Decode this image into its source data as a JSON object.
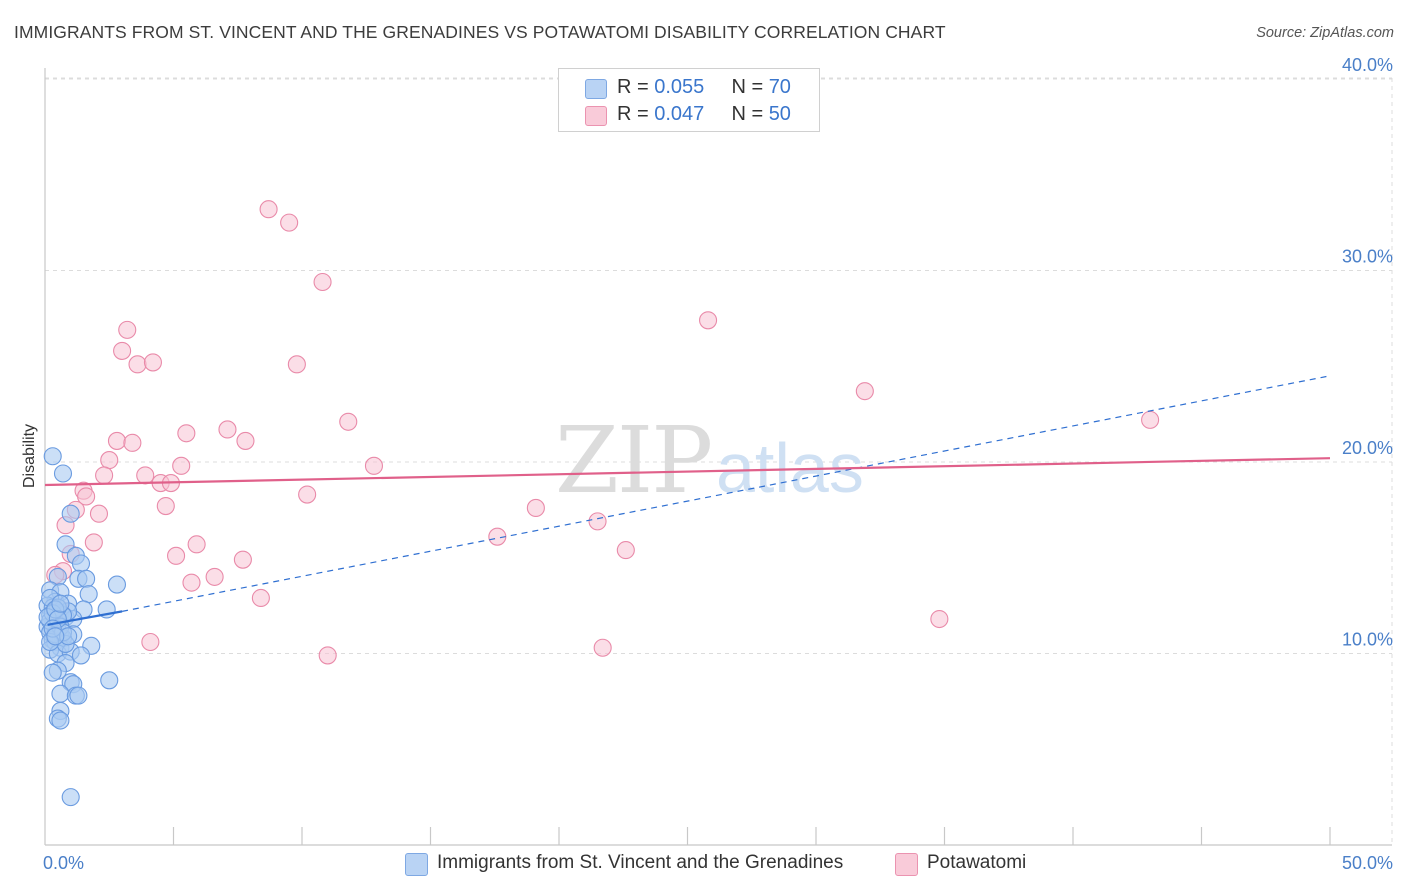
{
  "title": "IMMIGRANTS FROM ST. VINCENT AND THE GRENADINES VS POTAWATOMI DISABILITY CORRELATION CHART",
  "source": "Source: ZipAtlas.com",
  "watermark": {
    "zip": "ZIP",
    "atlas": "atlas"
  },
  "colors": {
    "blue_fill": "#a9c9f2",
    "blue_stroke": "#6a9be0",
    "blue_line": "#2f6fd1",
    "pink_fill": "#f7c3d3",
    "pink_stroke": "#e98aa9",
    "pink_line": "#e0608a",
    "tick_text": "#4a7fc8",
    "grid": "#dcdcdc"
  },
  "legend_top": {
    "blue": {
      "r_label": "R = ",
      "r_value": "0.055",
      "n_label": "N = ",
      "n_value": "70"
    },
    "pink": {
      "r_label": "R = ",
      "r_value": "0.047",
      "n_label": "N = ",
      "n_value": "50"
    }
  },
  "legend_bottom": {
    "blue": "Immigrants from St. Vincent and the Grenadines",
    "pink": "Potawatomi"
  },
  "chart_data": {
    "type": "scatter",
    "title": "IMMIGRANTS FROM ST. VINCENT AND THE GRENADINES VS POTAWATOMI DISABILITY CORRELATION CHART",
    "xlabel": "",
    "ylabel": "Disability",
    "xlim": [
      0,
      50
    ],
    "ylim": [
      0,
      41.5
    ],
    "x_tick_labels": [
      {
        "value": 0,
        "label": "0.0%"
      },
      {
        "value": 50,
        "label": "50.0%"
      }
    ],
    "y_tick_labels": [
      {
        "value": 10,
        "label": "10.0%"
      },
      {
        "value": 20,
        "label": "20.0%"
      },
      {
        "value": 30,
        "label": "30.0%"
      },
      {
        "value": 40,
        "label": "40.0%"
      }
    ],
    "series": [
      {
        "name": "Immigrants from St. Vincent and the Grenadines",
        "color": "blue",
        "R": 0.055,
        "N": 70,
        "trend_solid": {
          "x": [
            0.1,
            3.0
          ],
          "y": [
            11.5,
            12.2
          ]
        },
        "trend_dashed": {
          "x": [
            3.0,
            50.0
          ],
          "y": [
            12.2,
            24.5
          ]
        },
        "points": [
          [
            0.3,
            20.3
          ],
          [
            0.7,
            19.4
          ],
          [
            1.0,
            17.3
          ],
          [
            0.8,
            15.7
          ],
          [
            1.2,
            15.1
          ],
          [
            1.4,
            14.7
          ],
          [
            0.5,
            14.0
          ],
          [
            1.3,
            13.9
          ],
          [
            1.6,
            13.9
          ],
          [
            2.8,
            13.6
          ],
          [
            0.2,
            13.3
          ],
          [
            0.6,
            13.2
          ],
          [
            1.7,
            13.1
          ],
          [
            0.4,
            12.7
          ],
          [
            0.9,
            12.6
          ],
          [
            0.1,
            12.5
          ],
          [
            0.3,
            12.4
          ],
          [
            1.5,
            12.3
          ],
          [
            2.4,
            12.3
          ],
          [
            0.6,
            12.1
          ],
          [
            0.2,
            12.0
          ],
          [
            0.8,
            11.9
          ],
          [
            1.1,
            11.8
          ],
          [
            0.4,
            11.7
          ],
          [
            0.3,
            11.5
          ],
          [
            0.1,
            11.4
          ],
          [
            0.5,
            11.2
          ],
          [
            0.2,
            11.1
          ],
          [
            1.1,
            11.0
          ],
          [
            0.6,
            10.9
          ],
          [
            0.7,
            10.8
          ],
          [
            0.3,
            10.7
          ],
          [
            0.4,
            10.6
          ],
          [
            1.8,
            10.4
          ],
          [
            0.6,
            10.3
          ],
          [
            0.2,
            10.2
          ],
          [
            0.5,
            10.0
          ],
          [
            1.0,
            10.1
          ],
          [
            1.4,
            9.9
          ],
          [
            0.8,
            9.5
          ],
          [
            0.5,
            9.1
          ],
          [
            0.3,
            9.0
          ],
          [
            2.5,
            8.6
          ],
          [
            1.0,
            8.5
          ],
          [
            1.1,
            8.4
          ],
          [
            0.6,
            7.9
          ],
          [
            1.2,
            7.8
          ],
          [
            1.3,
            7.8
          ],
          [
            0.6,
            7.0
          ],
          [
            0.5,
            6.6
          ],
          [
            0.6,
            6.5
          ],
          [
            1.0,
            2.5
          ],
          [
            0.2,
            12.9
          ],
          [
            0.9,
            12.2
          ],
          [
            0.4,
            11.0
          ],
          [
            0.7,
            12.0
          ],
          [
            0.2,
            11.7
          ],
          [
            0.5,
            12.4
          ],
          [
            0.8,
            10.5
          ],
          [
            0.3,
            12.1
          ],
          [
            0.6,
            11.4
          ],
          [
            0.1,
            11.9
          ],
          [
            0.4,
            12.3
          ],
          [
            0.7,
            11.1
          ],
          [
            0.9,
            10.9
          ],
          [
            0.2,
            10.6
          ],
          [
            0.5,
            11.8
          ],
          [
            0.3,
            11.3
          ],
          [
            0.6,
            12.6
          ],
          [
            0.4,
            10.9
          ]
        ]
      },
      {
        "name": "Potawatomi",
        "color": "pink",
        "R": 0.047,
        "N": 50,
        "trend_solid": {
          "x": [
            0.0,
            50.0
          ],
          "y": [
            18.8,
            20.2
          ]
        },
        "points": [
          [
            8.7,
            33.2
          ],
          [
            9.5,
            32.5
          ],
          [
            10.8,
            29.4
          ],
          [
            3.2,
            26.9
          ],
          [
            3.0,
            25.8
          ],
          [
            3.6,
            25.1
          ],
          [
            4.2,
            25.2
          ],
          [
            9.8,
            25.1
          ],
          [
            25.8,
            27.4
          ],
          [
            31.9,
            23.7
          ],
          [
            43.0,
            22.2
          ],
          [
            11.8,
            22.1
          ],
          [
            7.1,
            21.7
          ],
          [
            5.5,
            21.5
          ],
          [
            2.8,
            21.1
          ],
          [
            3.4,
            21.0
          ],
          [
            7.8,
            21.1
          ],
          [
            2.5,
            20.1
          ],
          [
            5.3,
            19.8
          ],
          [
            12.8,
            19.8
          ],
          [
            2.3,
            19.3
          ],
          [
            3.9,
            19.3
          ],
          [
            4.5,
            18.9
          ],
          [
            4.9,
            18.9
          ],
          [
            1.5,
            18.5
          ],
          [
            1.6,
            18.2
          ],
          [
            10.2,
            18.3
          ],
          [
            4.7,
            17.7
          ],
          [
            1.2,
            17.5
          ],
          [
            2.1,
            17.3
          ],
          [
            19.1,
            17.6
          ],
          [
            0.8,
            16.7
          ],
          [
            21.5,
            16.9
          ],
          [
            17.6,
            16.1
          ],
          [
            1.9,
            15.8
          ],
          [
            5.9,
            15.7
          ],
          [
            1.0,
            15.2
          ],
          [
            5.1,
            15.1
          ],
          [
            22.6,
            15.4
          ],
          [
            7.7,
            14.9
          ],
          [
            0.7,
            14.3
          ],
          [
            0.4,
            14.1
          ],
          [
            6.6,
            14.0
          ],
          [
            5.7,
            13.7
          ],
          [
            8.4,
            12.9
          ],
          [
            34.8,
            11.8
          ],
          [
            4.1,
            10.6
          ],
          [
            21.7,
            10.3
          ],
          [
            11.0,
            9.9
          ],
          [
            0.6,
            12.3
          ]
        ]
      }
    ]
  }
}
